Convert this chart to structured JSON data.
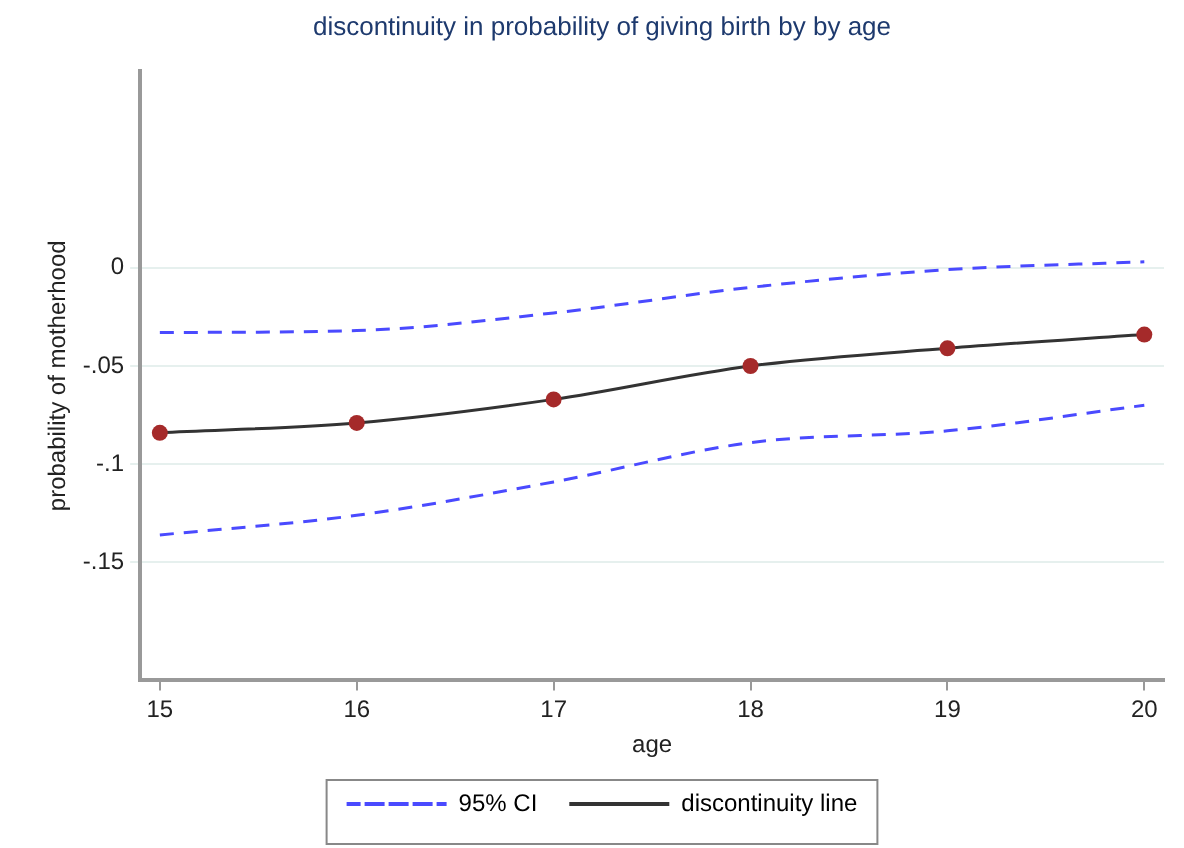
{
  "chart_data": {
    "type": "line",
    "title": "discontinuity in probability of giving birth by by age",
    "xlabel": "age",
    "ylabel": "probability of motherhood",
    "x": [
      15,
      16,
      17,
      18,
      19,
      20
    ],
    "series": [
      {
        "name": "95% CI",
        "color": "#4a4aff",
        "values": [
          -0.033,
          -0.032,
          -0.023,
          -0.01,
          -0.001,
          0.003
        ],
        "marker": "none",
        "line_style": "dashed"
      },
      {
        "color": "#4a4aff",
        "values": [
          -0.136,
          -0.126,
          -0.109,
          -0.089,
          -0.083,
          -0.07
        ],
        "marker": "none",
        "line_style": "dashed"
      },
      {
        "name": "discontinuity line",
        "color": "#333333",
        "values": [
          -0.084,
          -0.079,
          -0.067,
          -0.05,
          -0.041,
          -0.034
        ],
        "marker": "circle",
        "line_style": "solid"
      }
    ],
    "xlim": [
      14.9,
      20.1
    ],
    "xticks": [
      15,
      16,
      17,
      18,
      19,
      20
    ],
    "ylim": [
      -0.21,
      0.1
    ],
    "yticks": [
      {
        "value": -0.15,
        "label": "-.15"
      },
      {
        "value": -0.1,
        "label": "-.1"
      },
      {
        "value": -0.05,
        "label": "-.05"
      },
      0
    ],
    "grid": "y",
    "legend": "bottom"
  }
}
